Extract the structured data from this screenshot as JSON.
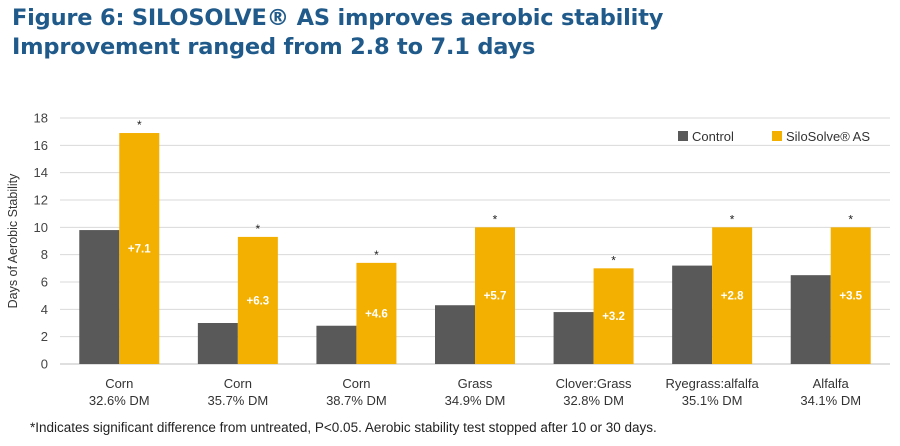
{
  "title_line1": "Figure 6: SILOSOLVE® AS improves aerobic stability",
  "title_line2": "Improvement ranged from 2.8 to 7.1 days",
  "footnote": "*Indicates significant difference from untreated, P<0.05. Aerobic stability test stopped after 10 or 30 days.",
  "chart_data": {
    "type": "bar",
    "categories": [
      [
        "Corn",
        "32.6% DM"
      ],
      [
        "Corn",
        "35.7% DM"
      ],
      [
        "Corn",
        "38.7% DM"
      ],
      [
        "Grass",
        "34.9% DM"
      ],
      [
        "Clover:Grass",
        "32.8% DM"
      ],
      [
        "Ryegrass:alfalfa",
        "35.1% DM"
      ],
      [
        "Alfalfa",
        "34.1% DM"
      ]
    ],
    "series": [
      {
        "name": "Control",
        "color": "#595959",
        "values": [
          9.8,
          3.0,
          2.8,
          4.3,
          3.8,
          7.2,
          6.5
        ]
      },
      {
        "name": "SiloSolve® AS",
        "color": "#f4b000",
        "values": [
          16.9,
          9.3,
          7.4,
          10.0,
          7.0,
          10.0,
          10.0
        ]
      }
    ],
    "bar_labels": [
      "+7.1",
      "+6.3",
      "+4.6",
      "+5.7",
      "+3.2",
      "+2.8",
      "+3.5"
    ],
    "significance_marker": "*",
    "ylabel": "Days of Aerobic Stability",
    "ylim": [
      0,
      18
    ],
    "yticks": [
      0,
      2,
      4,
      6,
      8,
      10,
      12,
      14,
      16,
      18
    ],
    "grid": true,
    "legend_position": "top-right"
  }
}
